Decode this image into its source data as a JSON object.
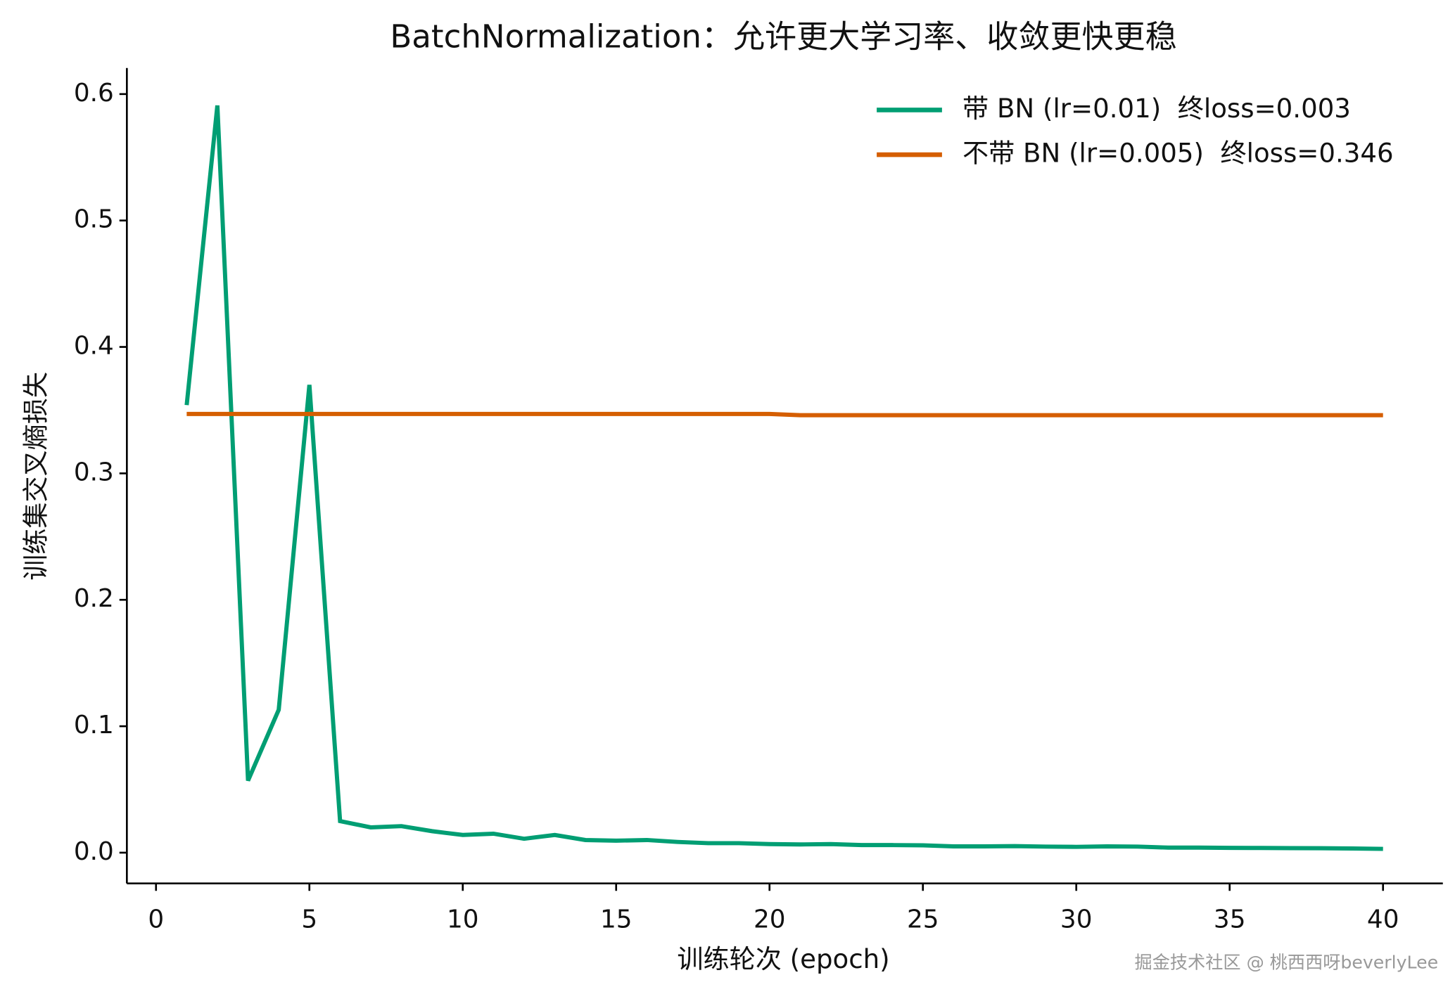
{
  "chart_data": {
    "type": "line",
    "title": "BatchNormalization：允许更大学习率、收敛更快更稳",
    "x_label": "训练轮次 (epoch)",
    "y_label": "训练集交叉熵损失",
    "watermark": "掘金技术社区 @ 桃西西呀beverlyLee",
    "x": [
      1,
      2,
      3,
      4,
      5,
      6,
      7,
      8,
      9,
      10,
      11,
      12,
      13,
      14,
      15,
      16,
      17,
      18,
      19,
      20,
      21,
      22,
      23,
      24,
      25,
      26,
      27,
      28,
      29,
      30,
      31,
      32,
      33,
      34,
      35,
      36,
      37,
      38,
      39,
      40
    ],
    "series": [
      {
        "name": "带 BN (lr=0.01)  终loss=0.003",
        "color": "#009e73",
        "values": [
          0.354,
          0.591,
          0.057,
          0.113,
          0.37,
          0.025,
          0.02,
          0.021,
          0.017,
          0.014,
          0.015,
          0.011,
          0.014,
          0.01,
          0.0095,
          0.01,
          0.0085,
          0.0075,
          0.0075,
          0.0068,
          0.0065,
          0.0068,
          0.006,
          0.006,
          0.0058,
          0.005,
          0.005,
          0.0052,
          0.0048,
          0.0046,
          0.005,
          0.0048,
          0.004,
          0.004,
          0.0038,
          0.0037,
          0.0036,
          0.0035,
          0.0033,
          0.003
        ]
      },
      {
        "name": "不带 BN (lr=0.005)  终loss=0.346",
        "color": "#d55e00",
        "values": [
          0.347,
          0.347,
          0.347,
          0.347,
          0.347,
          0.347,
          0.347,
          0.347,
          0.347,
          0.347,
          0.347,
          0.347,
          0.347,
          0.347,
          0.347,
          0.347,
          0.347,
          0.347,
          0.347,
          0.347,
          0.346,
          0.346,
          0.346,
          0.346,
          0.346,
          0.346,
          0.346,
          0.346,
          0.346,
          0.346,
          0.346,
          0.346,
          0.346,
          0.346,
          0.346,
          0.346,
          0.346,
          0.346,
          0.346,
          0.346
        ]
      }
    ],
    "xlim": [
      -0.95,
      41.95
    ],
    "ylim": [
      -0.0243,
      0.6206
    ],
    "xticks": [
      0,
      5,
      10,
      15,
      20,
      25,
      30,
      35,
      40
    ],
    "yticks": [
      {
        "value": 0,
        "label": "0.0"
      },
      0.1,
      0.2,
      0.3,
      0.4,
      0.5,
      0.6
    ],
    "legend": "upper-right",
    "grid": false
  }
}
